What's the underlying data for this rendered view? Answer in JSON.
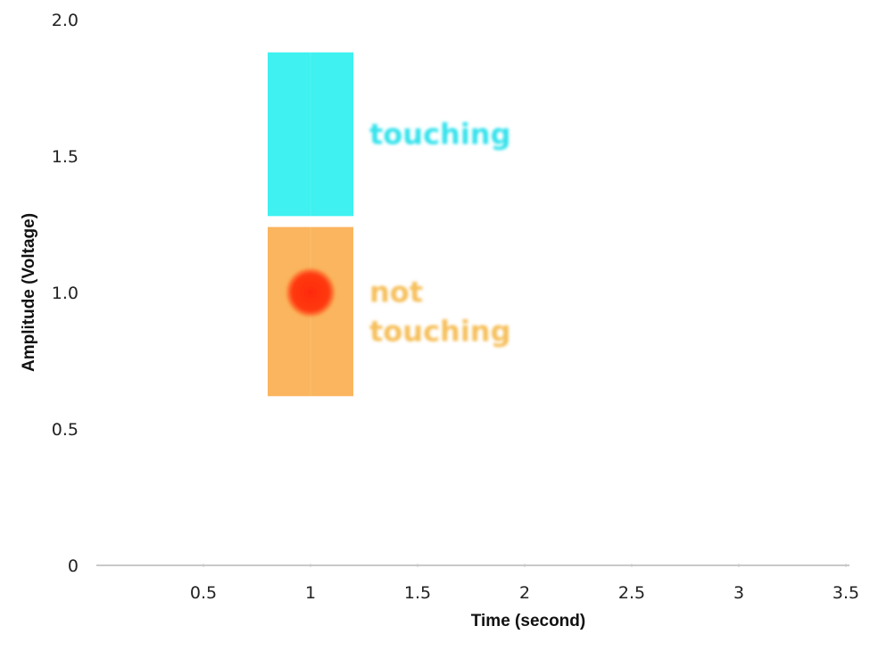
{
  "chart_data": {
    "type": "scatter",
    "title": "",
    "xlabel": "Time (second)",
    "ylabel": "Amplitude (Voltage)",
    "xlim": [
      0,
      3.5
    ],
    "ylim": [
      0,
      2.0
    ],
    "x_ticks": [
      "0.5",
      "1",
      "1.5",
      "2",
      "2.5",
      "3",
      "3.5"
    ],
    "x_tick_values": [
      0.5,
      1,
      1.5,
      2,
      2.5,
      3,
      3.5
    ],
    "y_ticks": [
      "0",
      "0.5",
      "1.0",
      "1.5",
      "2.0"
    ],
    "y_tick_values": [
      0,
      0.5,
      1.0,
      1.5,
      2.0
    ],
    "grid": false,
    "regions": [
      {
        "label_lines": [
          "touching"
        ],
        "x_range": [
          0.8,
          1.2
        ],
        "y_range": [
          1.28,
          1.88
        ],
        "color": "#3ff1f1",
        "label_color": "#35e2ec"
      },
      {
        "label_lines": [
          "not",
          "touching"
        ],
        "x_range": [
          0.8,
          1.2
        ],
        "y_range": [
          0.62,
          1.24
        ],
        "color": "#fab55e",
        "label_color": "#f6bf5c"
      }
    ],
    "points": [
      {
        "x": 1.0,
        "y": 1.0,
        "color": "#ff2a0a"
      }
    ]
  }
}
